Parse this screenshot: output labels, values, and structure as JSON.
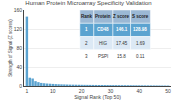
{
  "chart_data": {
    "type": "bar",
    "title": "Human Protein Microarray Specificity Validation",
    "xlabel": "Signal Rank (Top 50)",
    "ylabel": "Strength of Signal (Z scores)",
    "x": [
      1,
      2,
      3,
      4,
      5,
      6,
      7,
      8,
      9,
      10,
      11,
      12,
      13,
      14,
      15,
      16,
      17,
      18,
      19,
      20,
      21,
      22,
      23,
      24,
      25,
      26,
      27,
      28,
      29,
      30,
      31,
      32,
      33,
      34,
      35,
      36,
      37,
      38,
      39,
      40,
      41,
      42,
      43,
      44,
      45,
      46,
      47,
      48,
      49,
      50
    ],
    "values": [
      146.1,
      17.45,
      15.8,
      10.2,
      8.1,
      6.5,
      5.8,
      5.2,
      4.8,
      4.4,
      4.0,
      3.7,
      3.5,
      3.3,
      3.1,
      2.9,
      2.8,
      2.7,
      2.6,
      2.5,
      2.4,
      2.35,
      2.3,
      2.25,
      2.2,
      2.15,
      2.1,
      2.05,
      2.0,
      1.95,
      1.9,
      1.85,
      1.8,
      1.75,
      1.7,
      1.65,
      1.6,
      1.55,
      1.5,
      1.45,
      1.4,
      1.35,
      1.3,
      1.25,
      1.2,
      1.15,
      1.1,
      1.05,
      1.0,
      0.95
    ],
    "color": "#5ba3d0",
    "xlim": [
      0,
      51
    ],
    "xticks": [
      1,
      10,
      20,
      30,
      40,
      50
    ],
    "ylim": [
      0,
      160
    ],
    "yticks": [
      0,
      40,
      80,
      120,
      160
    ],
    "grid": true,
    "table": {
      "headers": [
        "Rank",
        "Protein",
        "Z score",
        "S score"
      ],
      "rows": [
        [
          "1",
          "CD48",
          "146.1",
          "128.98"
        ],
        [
          "2",
          "HIG",
          "17.45",
          "1.69"
        ],
        [
          "3",
          "PSPI",
          "15.8",
          "0.11"
        ]
      ],
      "header_color": "#9bb8d4",
      "row_colors": [
        "#5ba3d0",
        "#dce9f5",
        "#ffffff"
      ]
    }
  }
}
